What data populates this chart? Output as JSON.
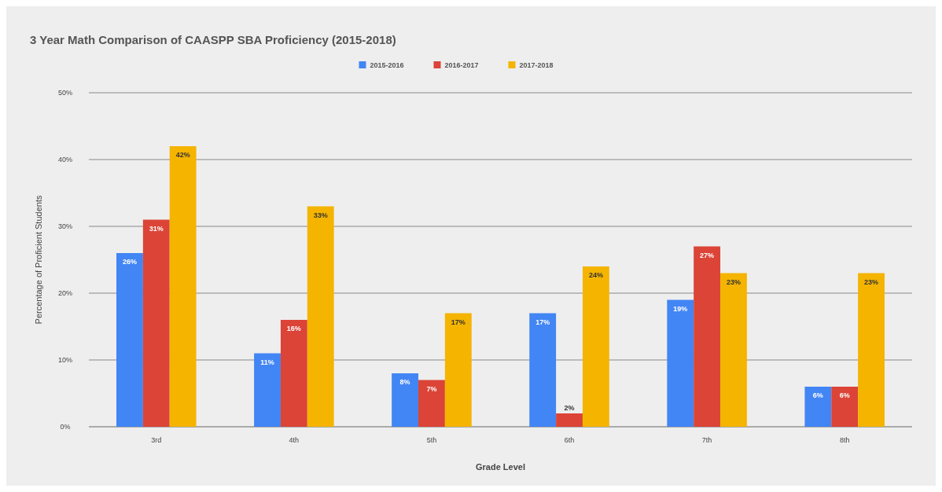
{
  "chart_data": {
    "type": "bar",
    "title": "3 Year Math Comparison of CAASPP SBA Proficiency (2015-2018)",
    "xlabel": "Grade Level",
    "ylabel": "Percentage of Proficient Students",
    "categories": [
      "3rd",
      "4th",
      "5th",
      "6th",
      "7th",
      "8th"
    ],
    "series": [
      {
        "name": "2015-2016",
        "color": "#4285f4",
        "values": [
          26,
          11,
          8,
          17,
          19,
          6
        ],
        "value_labels": [
          "26%",
          "11%",
          "8%",
          "17%",
          "19%",
          "6%"
        ]
      },
      {
        "name": "2016-2017",
        "color": "#db4437",
        "values": [
          31,
          16,
          7,
          2,
          27,
          6
        ],
        "value_labels": [
          "31%",
          "16%",
          "7%",
          "2%",
          "27%",
          "6%"
        ]
      },
      {
        "name": "2017-2018",
        "color": "#f4b400",
        "values": [
          42,
          33,
          17,
          24,
          23,
          23
        ],
        "value_labels": [
          "42%",
          "33%",
          "17%",
          "24%",
          "23%",
          "23%"
        ]
      }
    ],
    "ylim": [
      0,
      50
    ],
    "yticks": [
      {
        "value": 0,
        "label": "0%"
      },
      {
        "value": 10,
        "label": "10%"
      },
      {
        "value": 20,
        "label": "20%"
      },
      {
        "value": 30,
        "label": "30%"
      },
      {
        "value": 40,
        "label": "40%"
      },
      {
        "value": 50,
        "label": "50%"
      }
    ],
    "grid": "y",
    "legend": "top"
  }
}
